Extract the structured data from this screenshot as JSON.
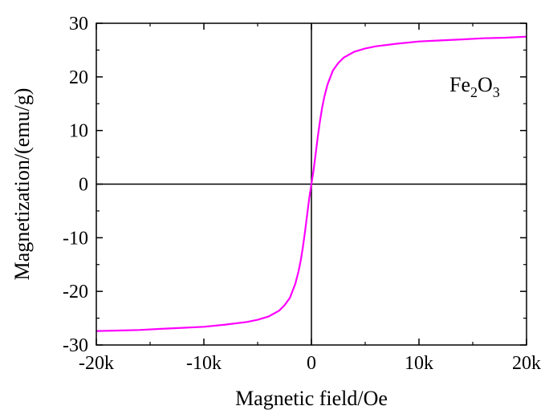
{
  "chart_data": {
    "type": "line",
    "xlabel": "Magnetic field/Oe",
    "ylabel": "Magnetization/(emu/g)",
    "xlim": [
      -20000,
      20000
    ],
    "ylim": [
      -30,
      30
    ],
    "x_ticks": [
      -20000,
      -10000,
      0,
      10000,
      20000
    ],
    "x_tick_labels": [
      "-20k",
      "-10k",
      "0",
      "10k",
      "20k"
    ],
    "y_ticks": [
      -30,
      -20,
      -10,
      0,
      10,
      20,
      30
    ],
    "y_tick_labels": [
      "-30",
      "-20",
      "-10",
      "0",
      "10",
      "20",
      "30"
    ],
    "grid": false,
    "zero_lines": true,
    "annotation": {
      "base1": "Fe",
      "sub1": "2",
      "base2": "O",
      "sub2": "3"
    },
    "series": [
      {
        "color": "#ff00ff",
        "x": [
          -20000,
          -18000,
          -16000,
          -14000,
          -12000,
          -10000,
          -8000,
          -6000,
          -5000,
          -4000,
          -3000,
          -2500,
          -2000,
          -1500,
          -1200,
          -1000,
          -800,
          -600,
          -400,
          -200,
          0,
          200,
          400,
          600,
          800,
          1000,
          1200,
          1500,
          2000,
          2500,
          3000,
          4000,
          5000,
          6000,
          8000,
          10000,
          12000,
          14000,
          16000,
          18000,
          20000
        ],
        "y": [
          -27.4,
          -27.3,
          -27.2,
          -27.0,
          -26.8,
          -26.6,
          -26.2,
          -25.7,
          -25.3,
          -24.7,
          -23.6,
          -22.6,
          -21.2,
          -18.6,
          -16.3,
          -14.3,
          -11.8,
          -8.9,
          -5.8,
          -2.6,
          0.0,
          2.6,
          5.8,
          8.9,
          11.8,
          14.3,
          16.3,
          18.6,
          21.2,
          22.6,
          23.6,
          24.7,
          25.3,
          25.7,
          26.2,
          26.6,
          26.8,
          27.0,
          27.2,
          27.3,
          27.5
        ]
      }
    ]
  }
}
